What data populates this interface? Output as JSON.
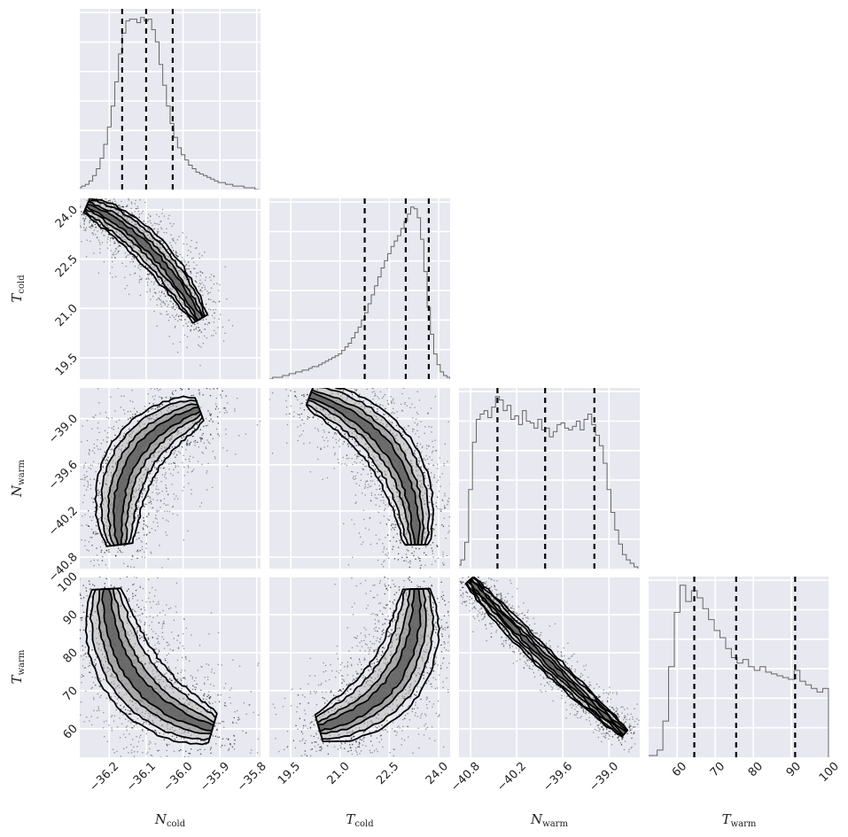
{
  "chart_data": {
    "type": "corner",
    "parameters": [
      {
        "label": "N",
        "sub": "cold",
        "range": [
          -36.28,
          -35.79
        ],
        "ticks": [
          -36.2,
          -36.1,
          -36.0,
          -35.9,
          -35.8
        ],
        "tick_labels": [
          "−36.2",
          "−36.1",
          "−36.0",
          "−35.9",
          "−35.8"
        ],
        "quantiles": [
          -36.165,
          -36.1,
          -36.028
        ]
      },
      {
        "label": "T",
        "sub": "cold",
        "range": [
          18.85,
          24.35
        ],
        "ticks": [
          19.5,
          21.0,
          22.5,
          24.0
        ],
        "tick_labels": [
          "19.5",
          "21.0",
          "22.5",
          "24.0"
        ],
        "quantiles": [
          21.75,
          23.0,
          23.7
        ]
      },
      {
        "label": "N",
        "sub": "warm",
        "range": [
          -40.95,
          -38.6
        ],
        "ticks": [
          -40.8,
          -40.2,
          -39.6,
          -39.0
        ],
        "tick_labels": [
          "−40.8",
          "−40.2",
          "−39.6",
          "−39.0"
        ],
        "quantiles": [
          -40.45,
          -39.83,
          -39.19
        ]
      },
      {
        "label": "T",
        "sub": "warm",
        "range": [
          52.5,
          100
        ],
        "ticks": [
          60,
          70,
          80,
          90,
          100
        ],
        "tick_labels": [
          "60",
          "70",
          "80",
          "90",
          "100"
        ],
        "quantiles": [
          64.5,
          75.5,
          91.0
        ]
      }
    ],
    "histograms": [
      {
        "param": 0,
        "x": [
          -36.28,
          -36.27,
          -36.26,
          -36.25,
          -36.24,
          -36.23,
          -36.22,
          -36.21,
          -36.2,
          -36.19,
          -36.18,
          -36.17,
          -36.16,
          -36.15,
          -36.14,
          -36.13,
          -36.12,
          -36.11,
          -36.1,
          -36.09,
          -36.08,
          -36.07,
          -36.06,
          -36.05,
          -36.04,
          -36.03,
          -36.02,
          -36.01,
          -36.0,
          -35.99,
          -35.98,
          -35.97,
          -35.96,
          -35.95,
          -35.94,
          -35.93,
          -35.92,
          -35.91,
          -35.9,
          -35.89,
          -35.88,
          -35.87,
          -35.86,
          -35.85,
          -35.84,
          -35.83,
          -35.82,
          -35.81,
          -35.8
        ],
        "y": [
          1,
          2,
          3,
          5,
          8,
          12,
          18,
          26,
          36,
          48,
          62,
          78,
          90,
          97,
          98,
          98,
          96,
          99,
          97,
          98,
          92,
          85,
          72,
          60,
          48,
          38,
          30,
          24,
          20,
          17,
          14,
          12,
          10,
          9,
          8,
          7,
          6,
          5,
          4,
          4,
          3,
          3,
          2,
          2,
          2,
          1,
          1,
          1,
          0
        ]
      },
      {
        "param": 1,
        "x": [
          18.9,
          19.0,
          19.1,
          19.2,
          19.3,
          19.4,
          19.5,
          19.6,
          19.7,
          19.8,
          19.9,
          20.0,
          20.1,
          20.2,
          20.3,
          20.4,
          20.5,
          20.6,
          20.7,
          20.8,
          20.9,
          21.0,
          21.1,
          21.2,
          21.3,
          21.4,
          21.5,
          21.6,
          21.7,
          21.8,
          21.9,
          22.0,
          22.1,
          22.2,
          22.3,
          22.4,
          22.5,
          22.6,
          22.7,
          22.8,
          22.9,
          23.0,
          23.1,
          23.2,
          23.3,
          23.4,
          23.5,
          23.6,
          23.7,
          23.8,
          23.9,
          24.0,
          24.1,
          24.2,
          24.3
        ],
        "y": [
          0,
          1,
          1,
          1,
          2,
          2,
          3,
          3,
          4,
          4,
          5,
          5,
          6,
          7,
          7,
          8,
          9,
          10,
          11,
          12,
          13,
          14,
          16,
          18,
          20,
          23,
          26,
          29,
          33,
          37,
          42,
          47,
          52,
          57,
          62,
          66,
          70,
          74,
          77,
          80,
          84,
          88,
          92,
          96,
          95,
          90,
          78,
          60,
          40,
          25,
          14,
          8,
          4,
          2,
          1
        ]
      },
      {
        "param": 2,
        "x": [
          -40.95,
          -40.9,
          -40.85,
          -40.8,
          -40.75,
          -40.7,
          -40.65,
          -40.6,
          -40.55,
          -40.5,
          -40.45,
          -40.4,
          -40.35,
          -40.3,
          -40.25,
          -40.2,
          -40.15,
          -40.1,
          -40.05,
          -40.0,
          -39.95,
          -39.9,
          -39.85,
          -39.8,
          -39.75,
          -39.7,
          -39.65,
          -39.6,
          -39.55,
          -39.5,
          -39.45,
          -39.4,
          -39.35,
          -39.3,
          -39.25,
          -39.2,
          -39.15,
          -39.1,
          -39.05,
          -39.0,
          -38.95,
          -38.9,
          -38.85,
          -38.8,
          -38.75,
          -38.7,
          -38.65
        ],
        "y": [
          2,
          5,
          15,
          45,
          72,
          85,
          88,
          90,
          86,
          92,
          98,
          96,
          90,
          93,
          85,
          87,
          82,
          90,
          84,
          83,
          80,
          85,
          79,
          80,
          75,
          78,
          82,
          83,
          80,
          79,
          81,
          84,
          79,
          85,
          88,
          82,
          76,
          70,
          60,
          45,
          32,
          22,
          14,
          8,
          5,
          3,
          1
        ]
      },
      {
        "param": 3,
        "x": [
          52.5,
          54,
          55.5,
          57,
          58.5,
          60,
          61.5,
          63,
          64.5,
          66,
          67.5,
          69,
          70.5,
          72,
          73.5,
          75,
          76.5,
          78,
          79.5,
          81,
          82.5,
          84,
          85.5,
          87,
          88.5,
          90,
          91.5,
          93,
          94.5,
          96,
          97.5,
          99
        ],
        "y": [
          1,
          1,
          4,
          20,
          50,
          80,
          95,
          86,
          92,
          88,
          82,
          76,
          70,
          66,
          60,
          55,
          52,
          54,
          50,
          48,
          50,
          47,
          46,
          45,
          44,
          43,
          48,
          42,
          40,
          38,
          36,
          38
        ]
      }
    ],
    "contour_panels": [
      {
        "row": 1,
        "col": 0,
        "shape": "band_down_right"
      },
      {
        "row": 2,
        "col": 0,
        "shape": "arc_left"
      },
      {
        "row": 2,
        "col": 1,
        "shape": "arc_right"
      },
      {
        "row": 3,
        "col": 0,
        "shape": "arc_down_right"
      },
      {
        "row": 3,
        "col": 1,
        "shape": "arc_up_right"
      },
      {
        "row": 3,
        "col": 2,
        "shape": "band_down_right"
      }
    ],
    "colors": {
      "background": "#e8e8f0",
      "grid": "#ffffff",
      "line": "#000000",
      "hist": "#666666"
    }
  }
}
